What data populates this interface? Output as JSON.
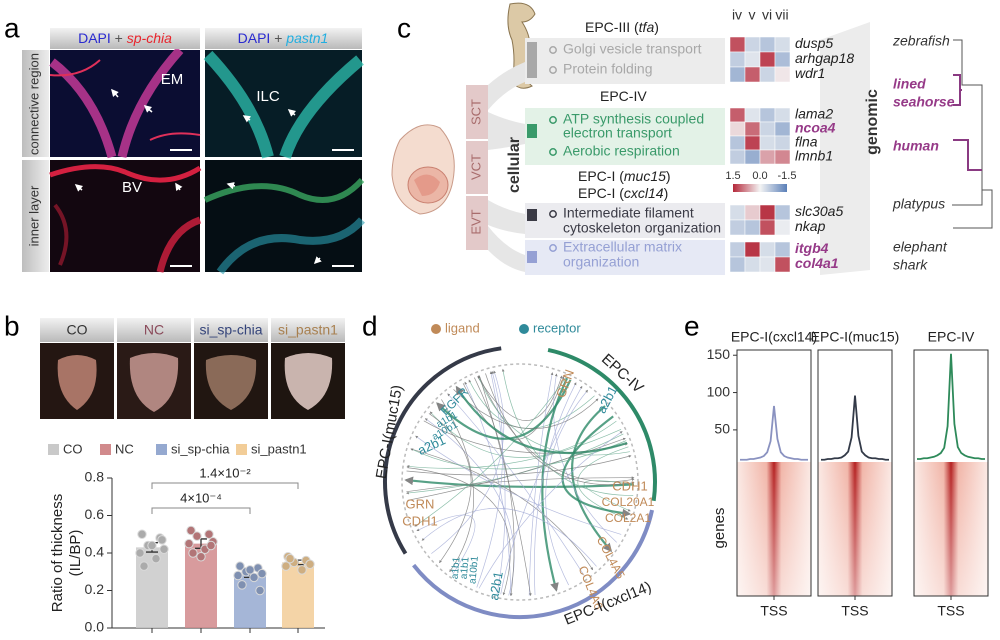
{
  "panel_a": {
    "label": "a",
    "columns": [
      {
        "parts": [
          "DAPI",
          " + ",
          "sp-chia"
        ],
        "colors": [
          "#2a2ad0",
          "#555555",
          "#e8242c"
        ]
      },
      {
        "parts": [
          "DAPI",
          " + ",
          "pastn1"
        ],
        "colors": [
          "#2a2ad0",
          "#555555",
          "#22aee0"
        ]
      }
    ],
    "rows": [
      "connective region",
      "inner layer"
    ],
    "annotations": [
      "EM",
      "ILC",
      "BV"
    ]
  },
  "panel_b": {
    "label": "b",
    "chart_data": {
      "type": "bar",
      "categories": [
        "CO",
        "NC",
        "si_sp-chia",
        "si_pastn1"
      ],
      "header_colors": [
        "#333333",
        "#8a4a5a",
        "#34447a",
        "#a88050"
      ],
      "colors": [
        "#c9c9c9",
        "#d18a8c",
        "#95a9d0",
        "#f2cd98"
      ],
      "values": [
        0.43,
        0.45,
        0.29,
        0.35
      ],
      "errors": [
        0.025,
        0.025,
        0.02,
        0.012
      ],
      "points": [
        [
          0.5,
          0.48,
          0.44,
          0.42,
          0.4,
          0.37,
          0.33,
          0.47,
          0.44
        ],
        [
          0.52,
          0.5,
          0.49,
          0.46,
          0.45,
          0.42,
          0.4,
          0.44,
          0.38
        ],
        [
          0.33,
          0.32,
          0.3,
          0.29,
          0.28,
          0.27,
          0.23,
          0.2,
          0.31
        ],
        [
          0.38,
          0.36,
          0.35,
          0.34,
          0.33,
          0.31,
          0.37
        ]
      ],
      "y_label": [
        "Ratio of thickness",
        "(IL/BP)"
      ],
      "ylim": [
        0,
        0.8
      ],
      "yticks": [
        {
          "value": 0,
          "label": "0.0"
        },
        0.2,
        0.4,
        0.6,
        0.8
      ],
      "comparisons": [
        {
          "groups": [
            "CO",
            "si_sp-chia"
          ],
          "label": "4×10⁻⁴"
        },
        {
          "groups": [
            "CO",
            "si_pastn1"
          ],
          "label": "1.4×10⁻²"
        }
      ]
    }
  },
  "panel_c": {
    "label": "c",
    "layers": [
      "SCT",
      "VCT",
      "EVT"
    ],
    "cellular_label": "cellular",
    "genomic_label": "genomic",
    "heatmap_columns": [
      "iv",
      "v",
      "vi",
      "vii"
    ],
    "colorbar": {
      "ticks": [
        1.5,
        {
          "value": 0,
          "label": "0.0"
        },
        -1.5
      ]
    },
    "groups": [
      {
        "title_parts": [
          "EPC-III (",
          "tfa",
          ")"
        ],
        "color": "#a8a8a8",
        "terms": [
          [
            "Golgi vesicle transport"
          ],
          [
            "Protein folding"
          ]
        ],
        "genes": [
          {
            "name": "dusp5",
            "values": [
              1.2,
              -0.4,
              -0.6,
              -0.3
            ]
          },
          {
            "name": "arhgap18",
            "values": [
              -0.5,
              -0.2,
              1.3,
              -0.7
            ]
          },
          {
            "name": "wdr1",
            "values": [
              -0.8,
              1.1,
              -0.4,
              0.1
            ]
          }
        ]
      },
      {
        "title_parts": [
          "EPC-IV"
        ],
        "color": "#3a9a6a",
        "terms": [
          [
            "ATP synthesis coupled",
            "electron transport"
          ],
          [
            "Aerobic respiration"
          ]
        ],
        "genes": [
          {
            "name": "lama2",
            "values": [
              1.1,
              -0.2,
              -0.6,
              -0.3
            ]
          },
          {
            "name": "ncoa4",
            "values": [
              0.2,
              1.0,
              -0.4,
              -0.8
            ],
            "highlight": true
          },
          {
            "name": "flna",
            "values": [
              -0.6,
              1.3,
              -0.3,
              -0.4
            ]
          },
          {
            "name": "lmnb1",
            "values": [
              -0.5,
              -0.9,
              0.6,
              0.8
            ]
          }
        ]
      },
      {
        "title_parts": [
          "EPC-I (",
          "muc15",
          ")"
        ],
        "color": "#3a3a45",
        "terms": [
          [
            "Intermediate filament",
            "cytoskeleton organization"
          ]
        ],
        "genes": [
          {
            "name": "slc30a5",
            "values": [
              -0.3,
              0.3,
              1.4,
              -0.6
            ]
          },
          {
            "name": "nkap",
            "values": [
              -0.5,
              -0.6,
              1.2,
              -0.1
            ]
          }
        ]
      },
      {
        "title_parts": [
          "EPC-I (",
          "cxcl14",
          ")"
        ],
        "color": "#95a0d4",
        "terms": [
          [
            "Extracellular matrix",
            "organization"
          ]
        ],
        "genes": [
          {
            "name": "itgb4",
            "values": [
              -0.5,
              1.4,
              -0.3,
              -0.6
            ],
            "highlight": true
          },
          {
            "name": "col4a1",
            "values": [
              -0.6,
              -0.3,
              -0.2,
              1.2
            ],
            "highlight": true
          }
        ]
      }
    ],
    "species": [
      {
        "name": [
          "zebrafish"
        ]
      },
      {
        "name": [
          "lined",
          "seahorse"
        ],
        "highlight": true
      },
      {
        "name": [
          "human"
        ],
        "highlight": true
      },
      {
        "name": [
          "platypus"
        ]
      },
      {
        "name": [
          "elephant",
          "shark"
        ]
      }
    ]
  },
  "panel_d": {
    "label": "d",
    "legend": [
      {
        "name": "ligand",
        "color": "#c08a58"
      },
      {
        "name": "receptor",
        "color": "#2f8a9a"
      }
    ],
    "clusters": [
      {
        "name": "EPC-IV",
        "color": "#2e8a68"
      },
      {
        "name": "EPC-I(muc15)",
        "color": "#353a48"
      },
      {
        "name": "EPC-I(cxcl14)",
        "color": "#7f8cc4"
      }
    ],
    "labels": [
      {
        "text": "EGFR",
        "kind": "receptor"
      },
      {
        "text": "a1b1",
        "kind": "receptor"
      },
      {
        "text": "a10b1",
        "kind": "receptor"
      },
      {
        "text": "a2b1",
        "kind": "receptor"
      },
      {
        "text": "GRN",
        "kind": "ligand"
      },
      {
        "text": "a2b1",
        "kind": "receptor"
      },
      {
        "text": "CDH1",
        "kind": "ligand"
      },
      {
        "text": "COL20A1",
        "kind": "ligand"
      },
      {
        "text": "COL2A1",
        "kind": "ligand"
      },
      {
        "text": "COL4A5",
        "kind": "ligand"
      },
      {
        "text": "COL4A6",
        "kind": "ligand"
      },
      {
        "text": "GRN",
        "kind": "ligand"
      },
      {
        "text": "CDH1",
        "kind": "ligand"
      },
      {
        "text": "a1b1",
        "kind": "receptor"
      },
      {
        "text": "a1b1",
        "kind": "receptor"
      },
      {
        "text": "a10b1",
        "kind": "receptor"
      },
      {
        "text": "a2b1",
        "kind": "receptor"
      }
    ]
  },
  "panel_e": {
    "label": "e",
    "heatmap_label": "genes",
    "chart_data": [
      {
        "type": "line",
        "title": "EPC-I(cxcl14)",
        "color": "#8a92c0",
        "x_label": "TSS",
        "ylim": [
          7,
          157
        ],
        "yticks": [
          50,
          100,
          150
        ],
        "values": [
          10,
          10,
          10,
          11,
          11,
          12,
          13,
          15,
          20,
          35,
          82,
          38,
          20,
          15,
          13,
          12,
          11,
          11,
          10,
          10,
          10
        ]
      },
      {
        "type": "line",
        "title": "EPC-I(muc15)",
        "color": "#333a48",
        "x_label": "TSS",
        "ylim": [
          7,
          157
        ],
        "values": [
          10,
          10,
          11,
          11,
          12,
          12,
          13,
          16,
          21,
          40,
          96,
          42,
          21,
          16,
          13,
          12,
          12,
          11,
          11,
          10,
          10
        ]
      },
      {
        "type": "line",
        "title": "EPC-IV",
        "color": "#2e8a5a",
        "x_label": "TSS",
        "ylim": [
          7,
          157
        ],
        "values": [
          11,
          11,
          12,
          12,
          13,
          14,
          16,
          19,
          26,
          55,
          152,
          58,
          27,
          19,
          16,
          14,
          13,
          12,
          12,
          11,
          11
        ]
      }
    ]
  }
}
